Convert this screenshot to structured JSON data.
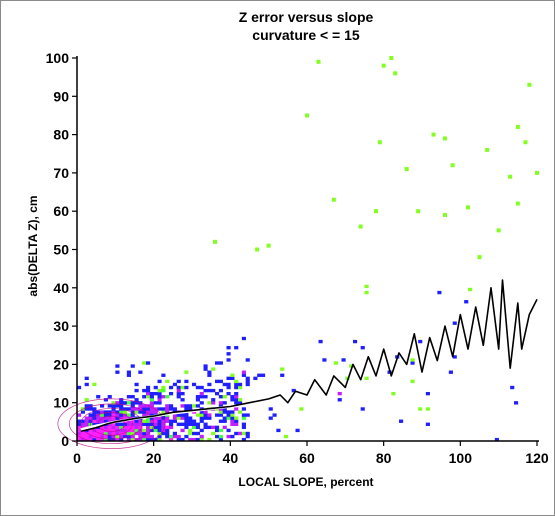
{
  "chart_data": {
    "type": "heatmap",
    "title": "Z error versus slope",
    "subtitle": "curvature < = 15",
    "xlabel": "LOCAL SLOPE, percent",
    "ylabel": "abs(DELTA Z), cm",
    "xlim": [
      0,
      120
    ],
    "ylim": [
      0,
      100
    ],
    "x_ticks": [
      0,
      20,
      40,
      60,
      80,
      100,
      120
    ],
    "y_ticks": [
      0,
      10,
      20,
      30,
      40,
      50,
      60,
      70,
      80,
      90,
      100
    ],
    "grid": false,
    "colors": {
      "density_low": "#80ff20",
      "density_mid_low": "#20ffb0",
      "density_mid": "#20a0ff",
      "density_high": "#2020ff",
      "density_peak": "#ff20ff",
      "mean_line": "#000000",
      "fit_line": "#ffffff",
      "contour": "#c00080"
    },
    "mean_line": {
      "x": [
        1,
        3,
        5,
        8,
        10,
        13,
        16,
        20,
        25,
        30,
        35,
        40,
        45,
        50,
        53,
        55,
        57,
        60,
        62,
        65,
        67,
        70,
        72,
        74,
        76,
        78,
        80,
        82,
        84,
        86,
        88,
        90,
        92,
        94,
        96,
        98,
        100,
        102,
        104,
        106,
        108,
        110,
        111,
        113,
        115,
        116,
        118,
        120
      ],
      "y": [
        2.5,
        3,
        3.5,
        4.5,
        5,
        5.5,
        6,
        6.5,
        7.5,
        8,
        8.5,
        9,
        10,
        11,
        12,
        10,
        13,
        12,
        16,
        12,
        17,
        14,
        20,
        16,
        22,
        17,
        24,
        17,
        23,
        20,
        28,
        18,
        27,
        21,
        30,
        22,
        33,
        24,
        35,
        25,
        40,
        24,
        42,
        19,
        36,
        24,
        33,
        37
      ]
    },
    "fit_line": {
      "x": [
        1,
        5,
        10,
        15,
        20,
        25,
        30,
        35,
        40,
        45,
        50
      ],
      "y": [
        3,
        4,
        5,
        5.8,
        6.5,
        7.2,
        7.8,
        8.4,
        9,
        9.5,
        10
      ]
    },
    "outliers": [
      {
        "x": 63,
        "y": 99
      },
      {
        "x": 80,
        "y": 98
      },
      {
        "x": 82,
        "y": 100
      },
      {
        "x": 83,
        "y": 96
      },
      {
        "x": 118,
        "y": 93
      },
      {
        "x": 60,
        "y": 85
      },
      {
        "x": 79,
        "y": 78
      },
      {
        "x": 93,
        "y": 80
      },
      {
        "x": 96,
        "y": 79
      },
      {
        "x": 115,
        "y": 82
      },
      {
        "x": 117,
        "y": 78
      },
      {
        "x": 107,
        "y": 76
      },
      {
        "x": 86,
        "y": 71
      },
      {
        "x": 98,
        "y": 72
      },
      {
        "x": 113,
        "y": 69
      },
      {
        "x": 67,
        "y": 63
      },
      {
        "x": 78,
        "y": 60
      },
      {
        "x": 89,
        "y": 60
      },
      {
        "x": 96,
        "y": 59
      },
      {
        "x": 102,
        "y": 61
      },
      {
        "x": 115,
        "y": 62
      },
      {
        "x": 36,
        "y": 52
      },
      {
        "x": 47,
        "y": 50
      },
      {
        "x": 50,
        "y": 51
      },
      {
        "x": 110,
        "y": 55
      },
      {
        "x": 120,
        "y": 70
      },
      {
        "x": 74,
        "y": 56
      },
      {
        "x": 105,
        "y": 48
      }
    ],
    "density": "point cloud concentrated at slope 0–40 and error 0–15; peak (magenta) near slope 0–20, error 0–10; sparse green scatter extends to slope 120, error 40"
  }
}
